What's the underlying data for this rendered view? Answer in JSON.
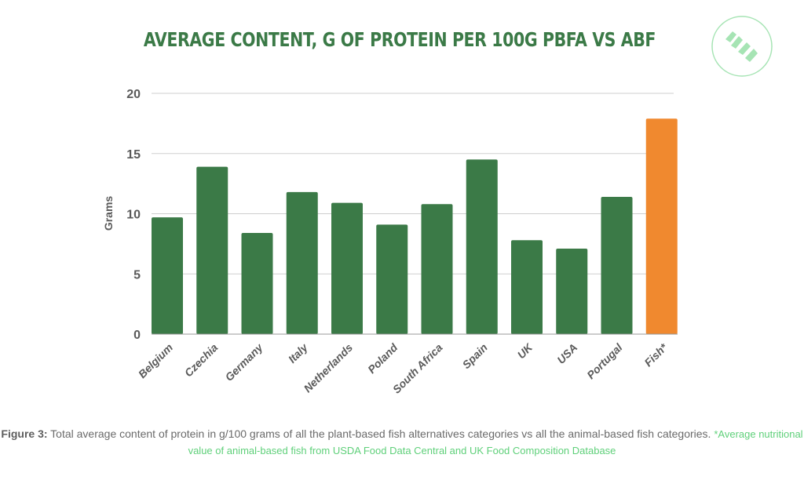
{
  "chart_data": {
    "type": "bar",
    "title": "AVERAGE CONTENT, G OF PROTEIN PER 100G PBFA VS ABF",
    "xlabel": "",
    "ylabel": "Grams",
    "ylim": [
      0,
      20
    ],
    "yticks": [
      0,
      5,
      10,
      15,
      20
    ],
    "grid": true,
    "categories": [
      "Belgium",
      "Czechia",
      "Germany",
      "Italy",
      "Netherlands",
      "Poland",
      "South Africa",
      "Spain",
      "UK",
      "USA",
      "Portugal",
      "Fish*"
    ],
    "values": [
      9.7,
      13.9,
      8.4,
      11.8,
      10.9,
      9.1,
      10.8,
      14.5,
      7.8,
      7.1,
      11.4,
      17.9
    ],
    "colors": {
      "plant_based": "#3b7a47",
      "animal_based": "#f0892f",
      "grid": "#cfcfcf"
    },
    "highlight_category": "Fish*"
  },
  "logo": {
    "name": "vm-logo",
    "color": "#a6e4b4"
  },
  "caption": {
    "figure_label": "Figure 3:",
    "text": " Total average content of protein in g/100 grams of all the plant-based fish alternatives categories vs all the animal-based fish categories. ",
    "note": "*Average nutritional value of animal-based fish from USDA Food Data Central and UK Food Composition Database"
  }
}
